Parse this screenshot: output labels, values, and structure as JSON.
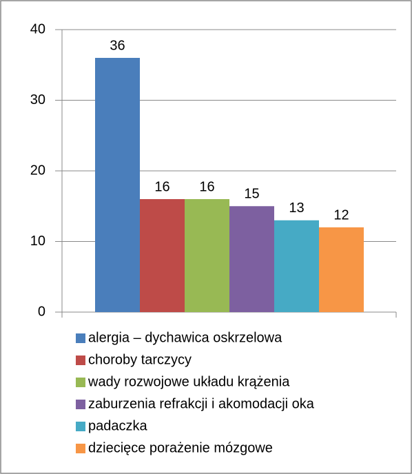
{
  "chart_data": {
    "type": "bar",
    "categories": [
      "alergia – dychawica oskrzelowa",
      "choroby tarczycy",
      "wady rozwojowe układu krążenia",
      "zaburzenia refrakcji i akomodacji oka",
      "padaczka",
      "dziecięce porażenie mózgowe"
    ],
    "values": [
      36,
      16,
      16,
      15,
      13,
      12
    ],
    "colors": [
      "#4a7ebb",
      "#be4b48",
      "#98b954",
      "#7d60a0",
      "#46aac5",
      "#f79646"
    ],
    "ylim": [
      0,
      40
    ],
    "yticks": [
      0,
      10,
      20,
      30,
      40
    ],
    "grid": true
  }
}
